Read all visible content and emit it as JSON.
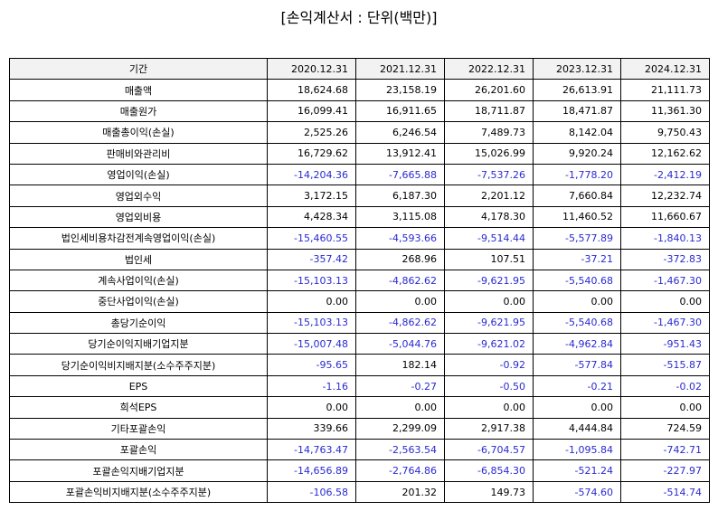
{
  "title": "[손익계산서 : 단위(백만)]",
  "table": {
    "header": [
      "기간",
      "2020.12.31",
      "2021.12.31",
      "2022.12.31",
      "2023.12.31",
      "2024.12.31"
    ],
    "rows": [
      [
        "매출액",
        "18,624.68",
        "23,158.19",
        "26,201.60",
        "26,613.91",
        "21,111.73"
      ],
      [
        "매출원가",
        "16,099.41",
        "16,911.65",
        "18,711.87",
        "18,471.87",
        "11,361.30"
      ],
      [
        "매출총이익(손실)",
        "2,525.26",
        "6,246.54",
        "7,489.73",
        "8,142.04",
        "9,750.43"
      ],
      [
        "판매비와관리비",
        "16,729.62",
        "13,912.41",
        "15,026.99",
        "9,920.24",
        "12,162.62"
      ],
      [
        "영업이익(손실)",
        "-14,204.36",
        "-7,665.88",
        "-7,537.26",
        "-1,778.20",
        "-2,412.19"
      ],
      [
        "영업외수익",
        "3,172.15",
        "6,187.30",
        "2,201.12",
        "7,660.84",
        "12,232.74"
      ],
      [
        "영업외비용",
        "4,428.34",
        "3,115.08",
        "4,178.30",
        "11,460.52",
        "11,660.67"
      ],
      [
        "법인세비용차감전계속영업이익(손실)",
        "-15,460.55",
        "-4,593.66",
        "-9,514.44",
        "-5,577.89",
        "-1,840.13"
      ],
      [
        "법인세",
        "-357.42",
        "268.96",
        "107.51",
        "-37.21",
        "-372.83"
      ],
      [
        "계속사업이익(손실)",
        "-15,103.13",
        "-4,862.62",
        "-9,621.95",
        "-5,540.68",
        "-1,467.30"
      ],
      [
        "중단사업이익(손실)",
        "0.00",
        "0.00",
        "0.00",
        "0.00",
        "0.00"
      ],
      [
        "총당기순이익",
        "-15,103.13",
        "-4,862.62",
        "-9,621.95",
        "-5,540.68",
        "-1,467.30"
      ],
      [
        "당기순이익지배기업지분",
        "-15,007.48",
        "-5,044.76",
        "-9,621.02",
        "-4,962.84",
        "-951.43"
      ],
      [
        "당기순이익비지배지분(소수주주지분)",
        "-95.65",
        "182.14",
        "-0.92",
        "-577.84",
        "-515.87"
      ],
      [
        "EPS",
        "-1.16",
        "-0.27",
        "-0.50",
        "-0.21",
        "-0.02"
      ],
      [
        "희석EPS",
        "0.00",
        "0.00",
        "0.00",
        "0.00",
        "0.00"
      ],
      [
        "기타포괄손익",
        "339.66",
        "2,299.09",
        "2,917.38",
        "4,444.84",
        "724.59"
      ],
      [
        "포괄손익",
        "-14,763.47",
        "-2,563.54",
        "-6,704.57",
        "-1,095.84",
        "-742.71"
      ],
      [
        "포괄손익지배기업지분",
        "-14,656.89",
        "-2,764.86",
        "-6,854.30",
        "-521.24",
        "-227.97"
      ],
      [
        "포괄손익비지배지분(소수주주지분)",
        "-106.58",
        "201.32",
        "149.73",
        "-574.60",
        "-514.74"
      ]
    ]
  }
}
